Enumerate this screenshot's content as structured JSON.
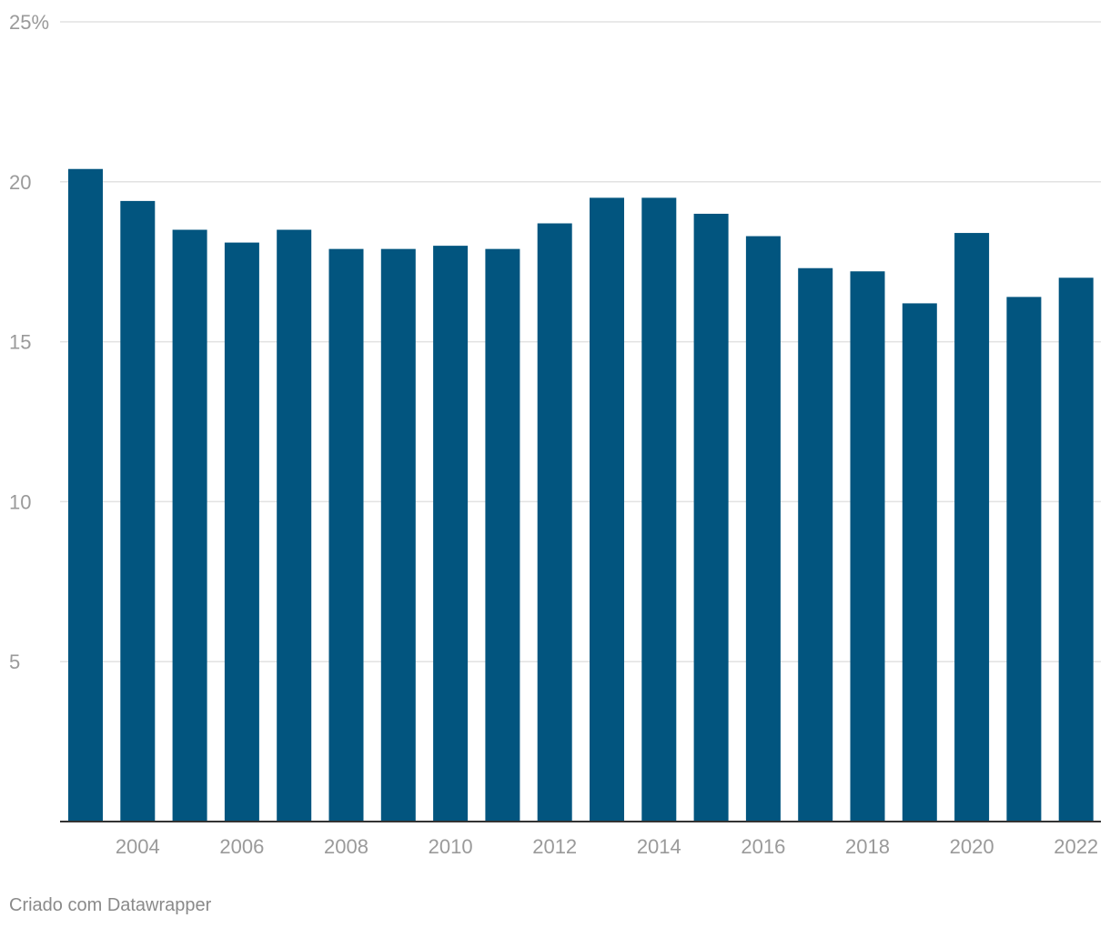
{
  "chart_data": {
    "type": "bar",
    "categories": [
      "2003",
      "2004",
      "2005",
      "2006",
      "2007",
      "2008",
      "2009",
      "2010",
      "2011",
      "2012",
      "2013",
      "2014",
      "2015",
      "2016",
      "2017",
      "2018",
      "2019",
      "2020",
      "2021",
      "2022"
    ],
    "values": [
      20.4,
      19.4,
      18.5,
      18.1,
      18.5,
      17.9,
      17.9,
      18.0,
      17.9,
      18.7,
      19.5,
      19.5,
      19.0,
      18.3,
      17.3,
      17.2,
      16.2,
      18.4,
      16.4,
      17.0
    ],
    "x_tick_labels": [
      "2004",
      "2006",
      "2008",
      "2010",
      "2012",
      "2014",
      "2016",
      "2018",
      "2020",
      "2022"
    ],
    "y_ticks": [
      5,
      10,
      15,
      20,
      25
    ],
    "y_tick_labels": [
      "5",
      "10",
      "15",
      "20",
      "25%"
    ],
    "ylim": [
      0,
      25
    ],
    "title": "",
    "xlabel": "",
    "ylabel": "",
    "grid": true,
    "bar_color": "#02557f"
  },
  "footer": {
    "credit": "Criado com Datawrapper"
  }
}
